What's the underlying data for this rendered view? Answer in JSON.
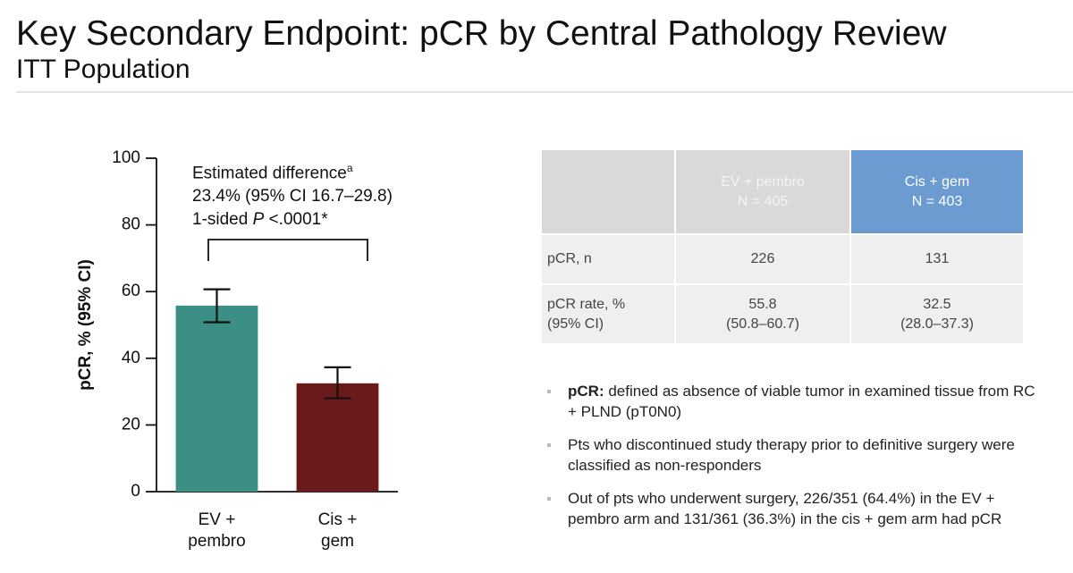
{
  "header": {
    "title": "Key Secondary Endpoint: pCR by Central Pathology Review",
    "subtitle": "ITT Population"
  },
  "chart_data": {
    "type": "bar",
    "categories": [
      "EV + pembro",
      "Cis + gem"
    ],
    "series": [
      {
        "name": "pCR",
        "values": [
          55.8,
          32.5
        ],
        "ci_low": [
          50.8,
          28.0
        ],
        "ci_high": [
          60.7,
          37.3
        ]
      }
    ],
    "colors": [
      "#3b8f85",
      "#6a1a1a"
    ],
    "y_label": "pCR, % (95% CI)",
    "ylim": [
      0,
      100
    ],
    "yticks": [
      0,
      20,
      40,
      60,
      80,
      100
    ],
    "grid": false,
    "annotation": {
      "heading": "Estimated difference",
      "heading_note": "a",
      "difference": "23.4% (95% CI 16.7–29.8)",
      "p_prefix": "1-sided",
      "p_symbol": "P",
      "p_value": "<.0001*"
    }
  },
  "table": {
    "columns": [
      {
        "name": "EV + pembro",
        "n": "N = 405"
      },
      {
        "name": "Cis + gem",
        "n": "N = 403"
      }
    ],
    "rows": [
      {
        "label": [
          "pCR, n"
        ],
        "cells": [
          [
            "226"
          ],
          [
            "131"
          ]
        ]
      },
      {
        "label": [
          "pCR rate, %",
          "(95% CI)"
        ],
        "cells": [
          [
            "55.8",
            "(50.8–60.7)"
          ],
          [
            "32.5",
            "(28.0–37.3)"
          ]
        ]
      }
    ]
  },
  "bullets": [
    {
      "bold": "pCR:",
      "text": "defined as absence of viable tumor in examined tissue from RC + PLND (pT0N0)"
    },
    {
      "text": "Pts who discontinued study therapy prior to definitive surgery were classified as non-responders"
    },
    {
      "text": "Out of pts who underwent surgery, 226/351 (64.4%) in the EV + pembro arm and 131/361 (36.3%) in the cis + gem arm had pCR"
    }
  ]
}
